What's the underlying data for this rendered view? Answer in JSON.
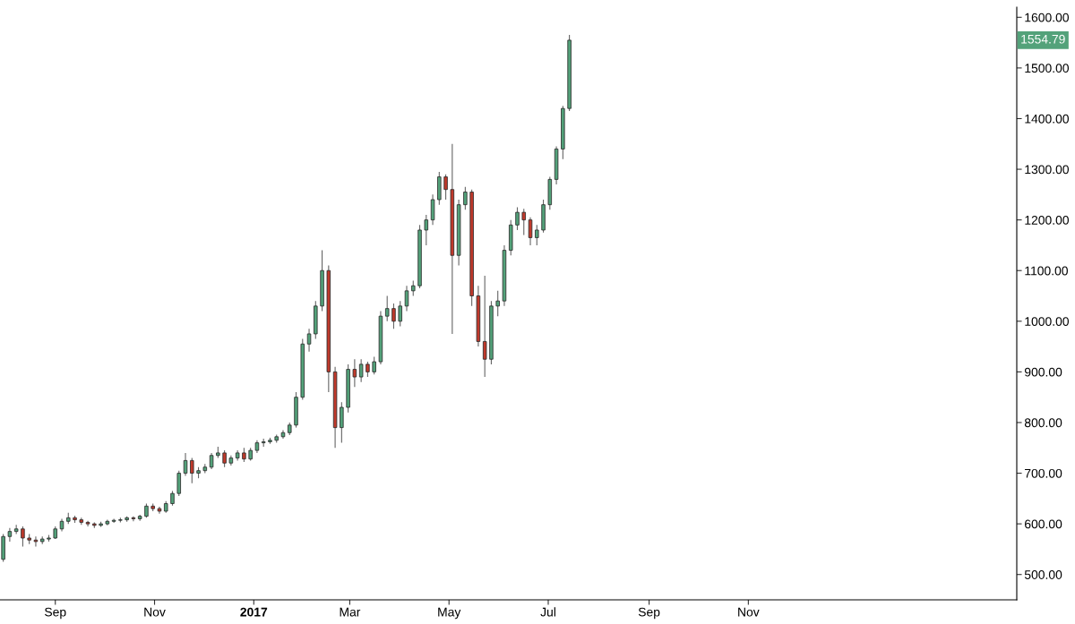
{
  "chart_data": {
    "type": "candlestick",
    "x": [
      "2016-07-31",
      "2016-08-04",
      "2016-08-08",
      "2016-08-12",
      "2016-08-16",
      "2016-08-20",
      "2016-08-24",
      "2016-08-28",
      "2016-09-01",
      "2016-09-05",
      "2016-09-09",
      "2016-09-13",
      "2016-09-17",
      "2016-09-21",
      "2016-09-25",
      "2016-09-29",
      "2016-10-03",
      "2016-10-07",
      "2016-10-11",
      "2016-10-15",
      "2016-10-19",
      "2016-10-23",
      "2016-10-27",
      "2016-10-31",
      "2016-11-04",
      "2016-11-08",
      "2016-11-12",
      "2016-11-16",
      "2016-11-20",
      "2016-11-24",
      "2016-11-28",
      "2016-12-02",
      "2016-12-06",
      "2016-12-10",
      "2016-12-14",
      "2016-12-18",
      "2016-12-22",
      "2016-12-26",
      "2016-12-30",
      "2017-01-03",
      "2017-01-07",
      "2017-01-11",
      "2017-01-15",
      "2017-01-19",
      "2017-01-23",
      "2017-01-27",
      "2017-01-31",
      "2017-02-04",
      "2017-02-08",
      "2017-02-12",
      "2017-02-16",
      "2017-02-20",
      "2017-02-24",
      "2017-02-28",
      "2017-03-04",
      "2017-03-08",
      "2017-03-12",
      "2017-03-16",
      "2017-03-20",
      "2017-03-24",
      "2017-03-28",
      "2017-04-01",
      "2017-04-05",
      "2017-04-09",
      "2017-04-13",
      "2017-04-17",
      "2017-04-21",
      "2017-04-25",
      "2017-04-29",
      "2017-05-03",
      "2017-05-07",
      "2017-05-11",
      "2017-05-15",
      "2017-05-19",
      "2017-05-23",
      "2017-05-27",
      "2017-05-31",
      "2017-06-04",
      "2017-06-08",
      "2017-06-12",
      "2017-06-16",
      "2017-06-20",
      "2017-06-24",
      "2017-06-28",
      "2017-07-02",
      "2017-07-06",
      "2017-07-10",
      "2017-07-14"
    ],
    "ohlc": [
      [
        530,
        580,
        525,
        575
      ],
      [
        575,
        592,
        565,
        585
      ],
      [
        585,
        598,
        580,
        590
      ],
      [
        590,
        595,
        555,
        572
      ],
      [
        572,
        580,
        560,
        568
      ],
      [
        568,
        575,
        555,
        565
      ],
      [
        565,
        575,
        560,
        570
      ],
      [
        570,
        578,
        565,
        572
      ],
      [
        572,
        595,
        570,
        590
      ],
      [
        590,
        610,
        585,
        605
      ],
      [
        605,
        622,
        600,
        612
      ],
      [
        612,
        616,
        602,
        608
      ],
      [
        608,
        612,
        598,
        603
      ],
      [
        603,
        606,
        595,
        600
      ],
      [
        600,
        603,
        592,
        597
      ],
      [
        597,
        604,
        594,
        600
      ],
      [
        600,
        608,
        597,
        605
      ],
      [
        605,
        610,
        602,
        607
      ],
      [
        607,
        612,
        603,
        608
      ],
      [
        608,
        615,
        604,
        612
      ],
      [
        612,
        615,
        605,
        610
      ],
      [
        610,
        618,
        606,
        615
      ],
      [
        615,
        640,
        612,
        635
      ],
      [
        635,
        640,
        625,
        630
      ],
      [
        630,
        634,
        620,
        625
      ],
      [
        625,
        645,
        622,
        640
      ],
      [
        640,
        665,
        636,
        660
      ],
      [
        660,
        705,
        655,
        700
      ],
      [
        700,
        740,
        695,
        725
      ],
      [
        725,
        730,
        680,
        700
      ],
      [
        700,
        712,
        690,
        705
      ],
      [
        705,
        718,
        700,
        712
      ],
      [
        712,
        740,
        708,
        735
      ],
      [
        735,
        752,
        730,
        740
      ],
      [
        740,
        745,
        712,
        720
      ],
      [
        720,
        735,
        715,
        730
      ],
      [
        730,
        745,
        725,
        740
      ],
      [
        740,
        750,
        722,
        728
      ],
      [
        728,
        750,
        725,
        745
      ],
      [
        745,
        765,
        740,
        760
      ],
      [
        760,
        768,
        752,
        762
      ],
      [
        762,
        770,
        758,
        765
      ],
      [
        765,
        776,
        760,
        772
      ],
      [
        772,
        785,
        768,
        780
      ],
      [
        780,
        800,
        775,
        795
      ],
      [
        795,
        860,
        790,
        850
      ],
      [
        850,
        965,
        845,
        955
      ],
      [
        955,
        985,
        940,
        975
      ],
      [
        975,
        1040,
        965,
        1030
      ],
      [
        1030,
        1140,
        1020,
        1100
      ],
      [
        1100,
        1110,
        860,
        900
      ],
      [
        900,
        910,
        750,
        790
      ],
      [
        790,
        840,
        760,
        830
      ],
      [
        830,
        915,
        820,
        905
      ],
      [
        905,
        925,
        870,
        890
      ],
      [
        890,
        925,
        880,
        915
      ],
      [
        915,
        920,
        890,
        900
      ],
      [
        900,
        930,
        895,
        920
      ],
      [
        920,
        1020,
        915,
        1010
      ],
      [
        1010,
        1050,
        1000,
        1025
      ],
      [
        1025,
        1035,
        985,
        1000
      ],
      [
        1000,
        1040,
        990,
        1030
      ],
      [
        1030,
        1070,
        1020,
        1060
      ],
      [
        1060,
        1080,
        1050,
        1070
      ],
      [
        1070,
        1190,
        1065,
        1180
      ],
      [
        1180,
        1210,
        1150,
        1200
      ],
      [
        1200,
        1250,
        1190,
        1240
      ],
      [
        1240,
        1295,
        1230,
        1285
      ],
      [
        1285,
        1290,
        1240,
        1260
      ],
      [
        1260,
        1350,
        975,
        1130
      ],
      [
        1130,
        1240,
        1110,
        1230
      ],
      [
        1230,
        1265,
        1220,
        1255
      ],
      [
        1255,
        1260,
        1030,
        1050
      ],
      [
        1050,
        1070,
        950,
        960
      ],
      [
        960,
        1090,
        890,
        925
      ],
      [
        925,
        1040,
        915,
        1030
      ],
      [
        1030,
        1060,
        1010,
        1040
      ],
      [
        1040,
        1150,
        1030,
        1140
      ],
      [
        1140,
        1200,
        1130,
        1190
      ],
      [
        1190,
        1225,
        1180,
        1215
      ],
      [
        1215,
        1222,
        1170,
        1200
      ],
      [
        1200,
        1205,
        1150,
        1165
      ],
      [
        1165,
        1190,
        1150,
        1180
      ],
      [
        1180,
        1240,
        1175,
        1230
      ],
      [
        1230,
        1285,
        1220,
        1280
      ],
      [
        1280,
        1345,
        1270,
        1340
      ],
      [
        1340,
        1425,
        1320,
        1420
      ],
      [
        1420,
        1565,
        1415,
        1554.79
      ]
    ],
    "colors": [
      "#53a27a",
      "#53a27a",
      "#53a27a",
      "#c0392b",
      "#c0392b",
      "#c0392b",
      "#53a27a",
      "#53a27a",
      "#53a27a",
      "#53a27a",
      "#53a27a",
      "#c0392b",
      "#c0392b",
      "#c0392b",
      "#c0392b",
      "#53a27a",
      "#53a27a",
      "#53a27a",
      "#53a27a",
      "#53a27a",
      "#c0392b",
      "#53a27a",
      "#53a27a",
      "#c0392b",
      "#c0392b",
      "#53a27a",
      "#53a27a",
      "#53a27a",
      "#53a27a",
      "#c0392b",
      "#53a27a",
      "#53a27a",
      "#53a27a",
      "#53a27a",
      "#c0392b",
      "#53a27a",
      "#53a27a",
      "#c0392b",
      "#53a27a",
      "#53a27a",
      "#53a27a",
      "#53a27a",
      "#53a27a",
      "#53a27a",
      "#53a27a",
      "#53a27a",
      "#53a27a",
      "#53a27a",
      "#53a27a",
      "#53a27a",
      "#c0392b",
      "#c0392b",
      "#53a27a",
      "#53a27a",
      "#c0392b",
      "#53a27a",
      "#c0392b",
      "#53a27a",
      "#53a27a",
      "#53a27a",
      "#c0392b",
      "#53a27a",
      "#53a27a",
      "#53a27a",
      "#53a27a",
      "#53a27a",
      "#53a27a",
      "#53a27a",
      "#c0392b",
      "#c0392b",
      "#53a27a",
      "#53a27a",
      "#c0392b",
      "#c0392b",
      "#c0392b",
      "#53a27a",
      "#53a27a",
      "#53a27a",
      "#53a27a",
      "#53a27a",
      "#c0392b",
      "#c0392b",
      "#53a27a",
      "#53a27a",
      "#53a27a",
      "#53a27a",
      "#53a27a",
      "#53a27a"
    ],
    "xlim": [
      "2016-07-29",
      "2018-04-15"
    ],
    "xticks": [
      {
        "value": "2016-09-01",
        "label": "Sep"
      },
      {
        "value": "2016-11-01",
        "label": "Nov"
      },
      {
        "value": "2017-01-01",
        "label": "2017"
      },
      {
        "value": "2017-03-01",
        "label": "Mar"
      },
      {
        "value": "2017-05-01",
        "label": "May"
      },
      {
        "value": "2017-07-01",
        "label": "Jul"
      },
      {
        "value": "2017-09-01",
        "label": "Sep"
      },
      {
        "value": "2017-11-01",
        "label": "Nov"
      }
    ],
    "ylim": [
      450,
      1620
    ],
    "yticks": [
      {
        "value": 500,
        "label": "500.00"
      },
      {
        "value": 600,
        "label": "600.00"
      },
      {
        "value": 700,
        "label": "700.00"
      },
      {
        "value": 800,
        "label": "800.00"
      },
      {
        "value": 900,
        "label": "900.00"
      },
      {
        "value": 1000,
        "label": "1000.00"
      },
      {
        "value": 1100,
        "label": "1100.00"
      },
      {
        "value": 1200,
        "label": "1200.00"
      },
      {
        "value": 1300,
        "label": "1300.00"
      },
      {
        "value": 1400,
        "label": "1400.00"
      },
      {
        "value": 1500,
        "label": "1500.00"
      },
      {
        "value": 1600,
        "label": "1600.00"
      }
    ],
    "annotations": [
      "1554.79"
    ]
  }
}
